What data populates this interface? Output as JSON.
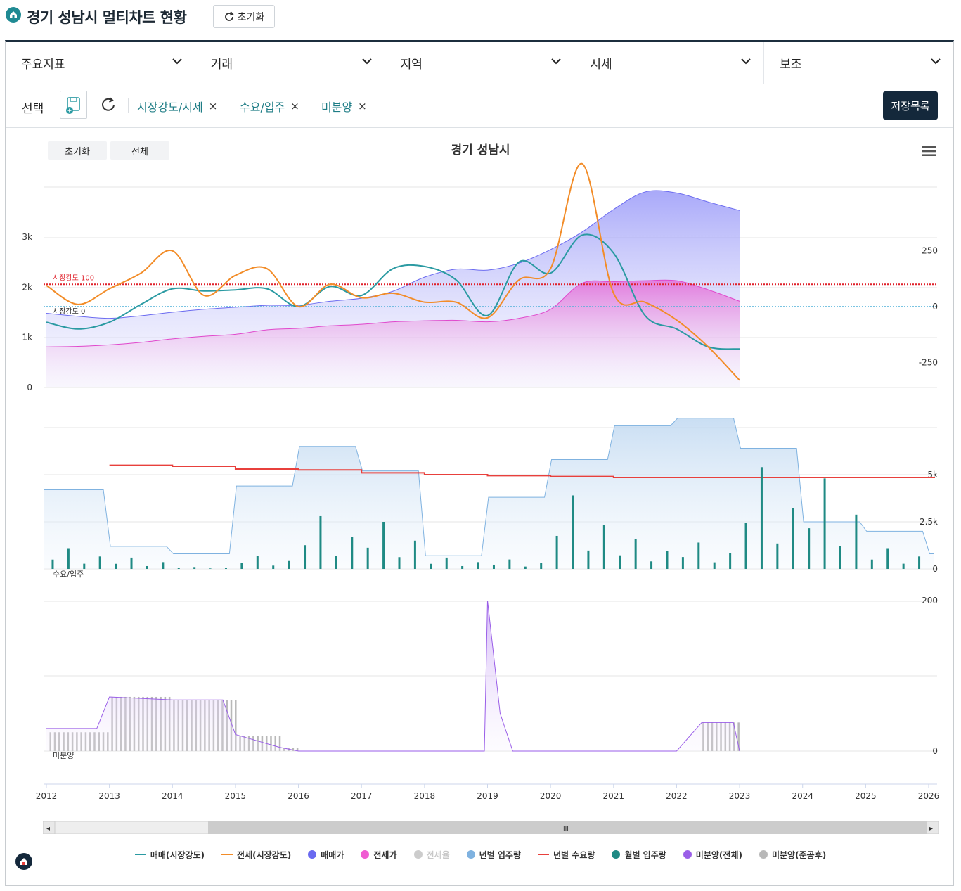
{
  "header": {
    "title": "경기 성남시 멀티차트 현황",
    "reset_label": "초기화"
  },
  "dropdowns": [
    {
      "label": "주요지표"
    },
    {
      "label": "거래"
    },
    {
      "label": "지역"
    },
    {
      "label": "시세"
    },
    {
      "label": "보조"
    }
  ],
  "selection": {
    "label": "선택",
    "chips": [
      {
        "label": "시장강도/시세"
      },
      {
        "label": "수요/입주"
      },
      {
        "label": "미분양"
      }
    ],
    "chip_close": "×",
    "saved_list_label": "저장목록"
  },
  "chart_controls": {
    "reset_label": "초기화",
    "all_label": "전체"
  },
  "colors": {
    "teal": "#2a9aa2",
    "orange": "#f28c28",
    "blue": "#7b7bf5",
    "pink": "#e45bd0",
    "grey": "#c8c8c8",
    "light_blue": "#7fb2e0",
    "red": "#e8403c",
    "dark_teal": "#1f8a84",
    "purple": "#9a5ee8",
    "header_navy": "#14283b"
  },
  "chart_data": [
    {
      "type": "line",
      "title": "경기 성남시",
      "panel": "시장강도/시세",
      "left_axis_ticks": [
        "0",
        "1k",
        "2k",
        "3k"
      ],
      "right_axis_ticks": [
        "-250",
        "0",
        "250"
      ],
      "plot_lines": [
        {
          "label": "시장강도 100",
          "value": 100,
          "color": "#e0202a"
        },
        {
          "label": "시장강도 0",
          "value": 0,
          "color": "#4fb0d8"
        }
      ],
      "x": [
        2012.0,
        2012.5,
        2013.0,
        2013.5,
        2014.0,
        2014.5,
        2015.0,
        2015.5,
        2016.0,
        2016.5,
        2017.0,
        2017.5,
        2018.0,
        2018.5,
        2019.0,
        2019.5,
        2020.0,
        2020.5,
        2021.0,
        2021.5,
        2022.0,
        2022.5,
        2023.0
      ],
      "series": [
        {
          "name": "매매(시장강도)",
          "values": [
            -70,
            -100,
            -70,
            10,
            80,
            70,
            75,
            80,
            0,
            90,
            50,
            170,
            180,
            120,
            -40,
            200,
            150,
            320,
            240,
            -40,
            -100,
            -180,
            -190
          ]
        },
        {
          "name": "전세(시장강도)",
          "values": [
            95,
            10,
            80,
            150,
            250,
            50,
            140,
            170,
            0,
            100,
            40,
            60,
            20,
            20,
            -50,
            120,
            170,
            640,
            60,
            20,
            -60,
            -180,
            -330
          ]
        },
        {
          "name": "매매가",
          "values": [
            1480,
            1420,
            1380,
            1430,
            1500,
            1560,
            1600,
            1640,
            1640,
            1720,
            1780,
            1920,
            2200,
            2360,
            2340,
            2480,
            2750,
            3100,
            3550,
            3900,
            3880,
            3700,
            3530
          ]
        },
        {
          "name": "전세가",
          "values": [
            810,
            820,
            850,
            900,
            970,
            1020,
            1060,
            1150,
            1180,
            1230,
            1260,
            1310,
            1330,
            1340,
            1310,
            1380,
            1560,
            2080,
            2110,
            2130,
            2130,
            1950,
            1720
          ]
        }
      ]
    },
    {
      "type": "bar",
      "panel": "수요/입주",
      "label": "수요/입주",
      "right_axis_ticks": [
        "0",
        "2.5k",
        "5k"
      ],
      "x": [
        2012,
        2013,
        2014,
        2015,
        2016,
        2017,
        2018,
        2019,
        2020,
        2021,
        2022,
        2023,
        2024,
        2025,
        2026
      ],
      "series": [
        {
          "name": "년별 입주량",
          "values": [
            4200,
            1200,
            800,
            4400,
            6500,
            5200,
            700,
            3800,
            5800,
            7600,
            8000,
            6400,
            2500,
            2000,
            800
          ]
        },
        {
          "name": "년별 수요량",
          "values": [
            null,
            5500,
            5450,
            5300,
            5250,
            5100,
            5000,
            4950,
            4900,
            4850,
            4850,
            4850,
            4850,
            4850,
            4850
          ]
        },
        {
          "name": "월별 입주량",
          "values": [
            1100,
            600,
            100,
            700,
            2800,
            2500,
            600,
            500,
            3900,
            1600,
            1400,
            5400,
            4800,
            1100,
            1000
          ]
        }
      ]
    },
    {
      "type": "area",
      "panel": "미분양",
      "label": "미분양",
      "right_axis_ticks": [
        "0",
        "200"
      ],
      "x": [
        2012.0,
        2012.8,
        2013.0,
        2014.0,
        2014.8,
        2015.0,
        2015.7,
        2016.0,
        2018.0,
        2018.95,
        2019.0,
        2019.2,
        2019.4,
        2020.0,
        2022.0,
        2022.4,
        2022.9,
        2023.0
      ],
      "series": [
        {
          "name": "미분양(전체)",
          "values": [
            30,
            30,
            72,
            68,
            68,
            22,
            5,
            0,
            0,
            0,
            200,
            50,
            0,
            0,
            0,
            38,
            38,
            0
          ]
        },
        {
          "name": "미분양(준공후)",
          "values": [
            25,
            25,
            72,
            68,
            68,
            20,
            4,
            0,
            0,
            0,
            0,
            0,
            0,
            0,
            0,
            38,
            38,
            0
          ]
        }
      ]
    }
  ],
  "x_axis": {
    "labels": [
      "2012",
      "2013",
      "2014",
      "2015",
      "2016",
      "2017",
      "2018",
      "2019",
      "2020",
      "2021",
      "2022",
      "2023",
      "2024",
      "2025",
      "2026"
    ]
  },
  "navigator": {
    "handle_label": "III",
    "left_arrow": "◂",
    "right_arrow": "▸"
  },
  "legend": [
    {
      "label": "매매(시장강도)",
      "kind": "line",
      "color": "#2a9aa2",
      "enabled": true
    },
    {
      "label": "전세(시장강도)",
      "kind": "line",
      "color": "#f28c28",
      "enabled": true
    },
    {
      "label": "매매가",
      "kind": "dot",
      "color": "#6a6af0",
      "enabled": true
    },
    {
      "label": "전세가",
      "kind": "dot",
      "color": "#f05cd2",
      "enabled": true
    },
    {
      "label": "전세율",
      "kind": "dot",
      "color": "#cccccc",
      "enabled": false
    },
    {
      "label": "년별 입주량",
      "kind": "dot",
      "color": "#7fb2e0",
      "enabled": true
    },
    {
      "label": "년별 수요량",
      "kind": "line",
      "color": "#e8403c",
      "enabled": true
    },
    {
      "label": "월별 입주량",
      "kind": "dot",
      "color": "#1f8a84",
      "enabled": true
    },
    {
      "label": "미분양(전체)",
      "kind": "dot",
      "color": "#9a5ee8",
      "enabled": true
    },
    {
      "label": "미분양(준공후)",
      "kind": "dot",
      "color": "#b8b8b8",
      "enabled": true
    }
  ]
}
